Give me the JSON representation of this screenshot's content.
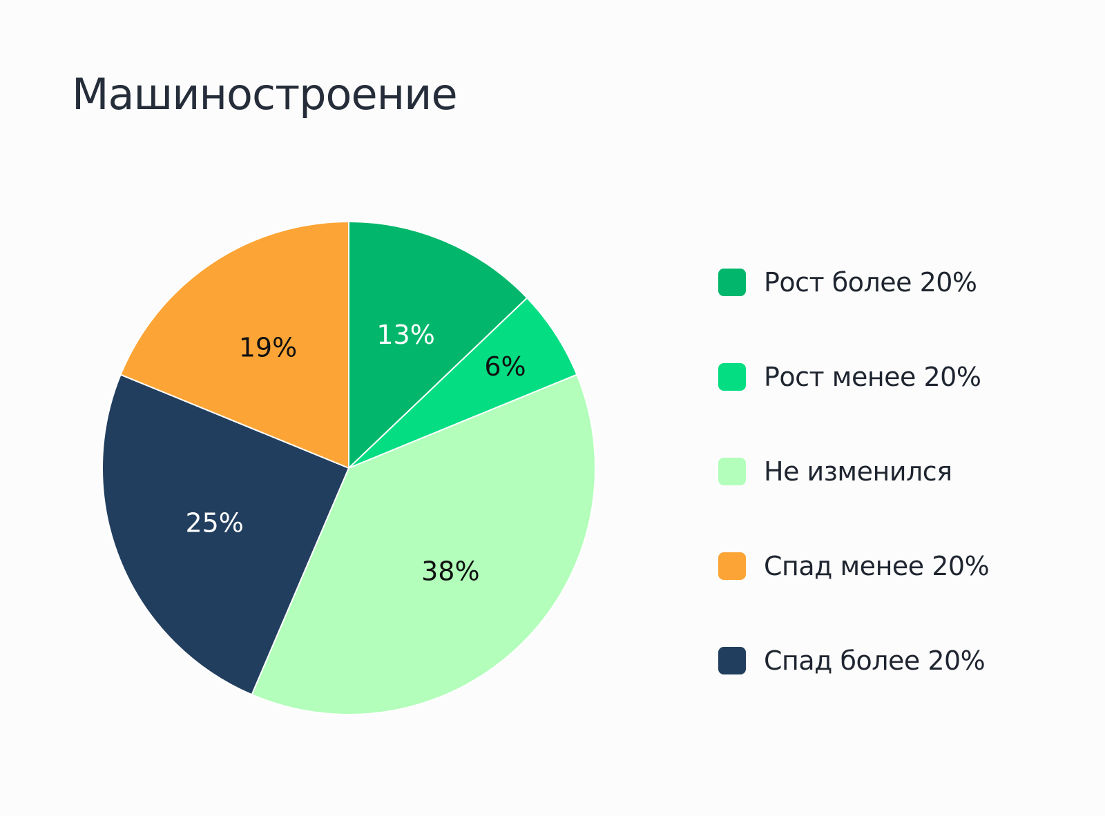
{
  "title": "Машиностроение",
  "chart_data": {
    "type": "pie",
    "title": "Машиностроение",
    "legend_position": "right",
    "start_angle_deg": 0,
    "direction": "clockwise",
    "slices": [
      {
        "label": "Рост более 20%",
        "value": 13,
        "value_label": "13%",
        "color": "#02b76b",
        "label_color": "#ffffff"
      },
      {
        "label": "Рост менее 20%",
        "value": 6,
        "value_label": "6%",
        "color": "#05dd83",
        "label_color": "#111111"
      },
      {
        "label": "Не изменился",
        "value": 38,
        "value_label": "38%",
        "color": "#b2feba",
        "label_color": "#111111"
      },
      {
        "label": "Спад более 20%",
        "value": 25,
        "value_label": "25%",
        "color": "#223e5e",
        "label_color": "#ffffff"
      },
      {
        "label": "Спад менее 20%",
        "value": 19,
        "value_label": "19%",
        "color": "#fca536",
        "label_color": "#111111"
      }
    ],
    "legend": [
      {
        "label": "Рост более 20%",
        "color": "#02b76b"
      },
      {
        "label": "Рост менее 20%",
        "color": "#05dd83"
      },
      {
        "label": "Не изменился",
        "color": "#b2feba"
      },
      {
        "label": "Спад менее 20%",
        "color": "#fca536"
      },
      {
        "label": "Спад более 20%",
        "color": "#223e5e"
      }
    ]
  }
}
